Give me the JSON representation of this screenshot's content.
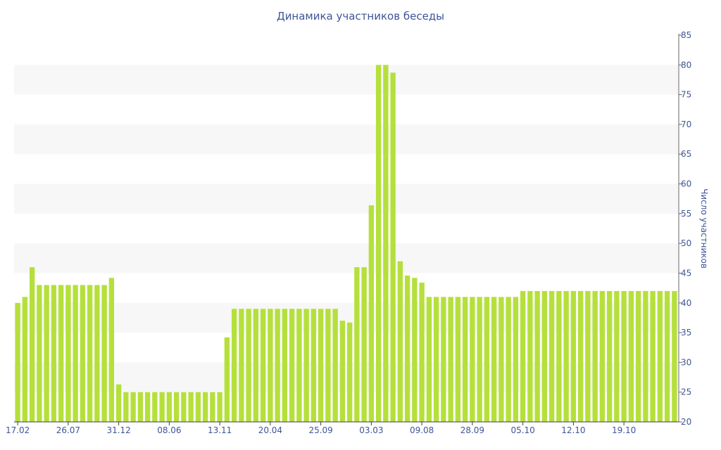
{
  "chart_data": {
    "type": "bar",
    "title": "Динамика участников беседы",
    "xlabel": "",
    "ylabel": "Число участников",
    "ylim": [
      20,
      85
    ],
    "y_ticks": [
      20,
      25,
      30,
      35,
      40,
      45,
      50,
      55,
      60,
      65,
      70,
      75,
      80,
      85
    ],
    "y_axis_position": "right",
    "grid": "alternating horizontal bands",
    "x_tick_labels": [
      {
        "label": "17.02",
        "index": 0
      },
      {
        "label": "26.07",
        "index": 7
      },
      {
        "label": "31.12",
        "index": 14
      },
      {
        "label": "08.06",
        "index": 21
      },
      {
        "label": "13.11",
        "index": 28
      },
      {
        "label": "20.04",
        "index": 35
      },
      {
        "label": "25.09",
        "index": 42
      },
      {
        "label": "03.03",
        "index": 49
      },
      {
        "label": "09.08",
        "index": 56
      },
      {
        "label": "28.09",
        "index": 63
      },
      {
        "label": "05.10",
        "index": 70
      },
      {
        "label": "12.10",
        "index": 77
      },
      {
        "label": "19.10",
        "index": 84
      }
    ],
    "values": [
      40,
      41,
      46,
      43,
      43,
      43,
      43,
      43,
      43,
      43,
      43,
      43,
      43,
      44.2,
      26.3,
      25,
      25,
      25,
      25,
      25,
      25,
      25,
      25,
      25,
      25,
      25,
      25,
      25,
      25,
      34.2,
      39,
      39,
      39,
      39,
      39,
      39,
      39,
      39,
      39,
      39,
      39,
      39,
      39,
      39,
      39,
      37,
      36.7,
      46,
      46,
      56.4,
      80,
      80,
      78.7,
      47,
      44.6,
      44.2,
      43.4,
      41,
      41,
      41,
      41,
      41,
      41,
      41,
      41,
      41,
      41,
      41,
      41,
      41,
      42,
      42,
      42,
      42,
      42,
      42,
      42,
      42,
      42,
      42,
      42,
      42,
      42,
      42,
      42,
      42,
      42,
      42,
      42,
      42,
      42,
      42
    ],
    "colors": {
      "bar": "#b5e03c",
      "band": "#f7f7f7",
      "text": "#3e5596",
      "axis": "#3c3c3c"
    }
  }
}
